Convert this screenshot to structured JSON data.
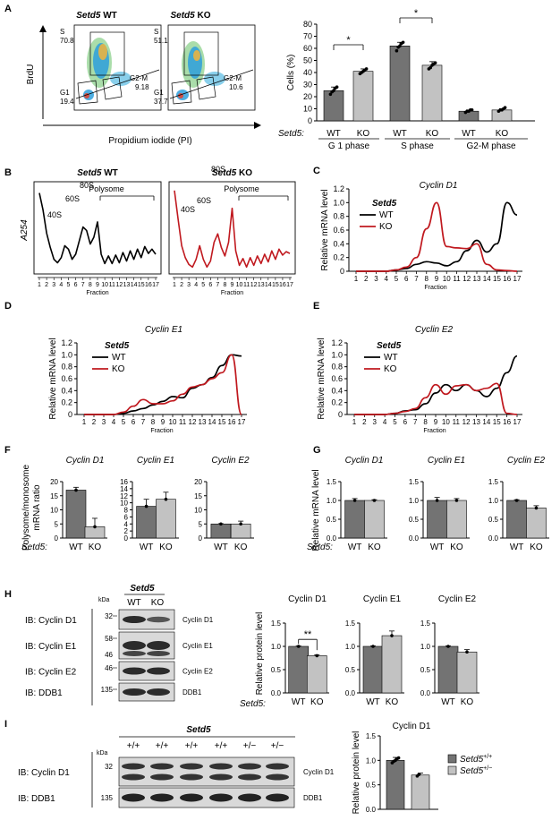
{
  "colors": {
    "wt": "#000000",
    "ko": "#c0191f",
    "dark_bar": "#737373",
    "light_bar": "#c2c2c2",
    "blot_bg": "#d9d9d9"
  },
  "panel_letters": [
    "A",
    "B",
    "C",
    "D",
    "E",
    "F",
    "G",
    "H",
    "I"
  ],
  "a": {
    "flow_titles": [
      {
        "gene": "Setd5",
        "geno": "WT"
      },
      {
        "gene": "Setd5",
        "geno": "KO"
      }
    ],
    "flow_wt": {
      "S_label": "S",
      "S_val": "70.8",
      "G1_label": "G1",
      "G1_val": "19.4",
      "G2M_label": "G2-M",
      "G2M_val": "9.18"
    },
    "flow_ko": {
      "S_label": "S",
      "S_val": "51.1",
      "G1_label": "G1",
      "G1_val": "37.7",
      "G2M_label": "G2-M",
      "G2M_val": "10.6"
    },
    "ylabel": "BrdU",
    "xlabel": "Propidium iodide (PI)",
    "cells_ylabel": "Cells (%)",
    "setd5_label": "Setd5:",
    "geno_labels": [
      "WT",
      "KO",
      "WT",
      "KO",
      "WT",
      "KO"
    ],
    "phase_labels": [
      "G 1 phase",
      "S phase",
      "G2-M phase"
    ],
    "sig": [
      "*",
      "*"
    ]
  },
  "b": {
    "titles": [
      {
        "gene": "Setd5",
        "geno": "WT"
      },
      {
        "gene": "Setd5",
        "geno": "KO"
      }
    ],
    "ylabel": "A254",
    "peaks": [
      "40S",
      "60S",
      "80S",
      "Polysome"
    ],
    "xlabel": "Fraction",
    "fractions": [
      "1",
      "2",
      "3",
      "4",
      "5",
      "6",
      "7",
      "8",
      "9",
      "10",
      "11",
      "12",
      "13",
      "14",
      "15",
      "16",
      "17"
    ]
  },
  "c": {
    "title": "Cyclin D1",
    "ylabel": "Relative mRNA level",
    "legend_title": "Setd5",
    "legend": [
      "WT",
      "KO"
    ],
    "xlabel": "Fraction"
  },
  "d": {
    "title": "Cyclin E1",
    "ylabel": "Relative mRNA level",
    "legend_title": "Setd5",
    "legend": [
      "WT",
      "KO"
    ],
    "xlabel": "Fraction"
  },
  "e": {
    "title": "Cyclin E2",
    "ylabel": "Relative mRNA level",
    "legend_title": "Setd5",
    "legend": [
      "WT",
      "KO"
    ],
    "xlabel": "Fraction"
  },
  "f": {
    "ylabel": "Polysome/monosome mRNA ratio",
    "titles": [
      "Cyclin D1",
      "Cyclin E1",
      "Cyclin E2"
    ],
    "setd5_label": "Setd5:"
  },
  "g": {
    "ylabel": "Relative mRNA level",
    "titles": [
      "Cyclin D1",
      "Cyclin E1",
      "Cyclin E2"
    ],
    "setd5_label": "Setd5:"
  },
  "h": {
    "gene": "Setd5",
    "kda": "kDa",
    "cols": [
      "WT",
      "KO"
    ],
    "rows": [
      {
        "ib": "IB: Cyclin D1",
        "mw1": "32",
        "mw2": "",
        "name": "Cyclin D1"
      },
      {
        "ib": "IB: Cyclin E1",
        "mw1": "58",
        "mw2": "46",
        "name": "Cyclin E1"
      },
      {
        "ib": "IB: Cyclin E2",
        "mw1": "46",
        "mw2": "",
        "name": "Cyclin E2"
      },
      {
        "ib": "IB: DDB1",
        "mw1": "135",
        "mw2": "",
        "name": "DDB1"
      }
    ],
    "ylabel": "Relative protein level",
    "titles": [
      "Cyclin D1",
      "Cyclin E1",
      "Cyclin E2"
    ],
    "setd5_label": "Setd5:",
    "sig": "**"
  },
  "i": {
    "gene": "Setd5",
    "kda": "kDa",
    "lanes": [
      "+/+",
      "+/+",
      "+/+",
      "+/+",
      "+/−",
      "+/−"
    ],
    "rows": [
      {
        "ib": "IB: Cyclin D1",
        "mw": "32",
        "name": "Cyclin D1"
      },
      {
        "ib": "IB: DDB1",
        "mw": "135",
        "name": "DDB1"
      }
    ],
    "ylabel": "Relative protein level",
    "title": "Cyclin D1",
    "legend": [
      {
        "gene": "Setd5",
        "sup": "+/+"
      },
      {
        "gene": "Setd5",
        "sup": "+/−"
      }
    ]
  },
  "chart_data": [
    {
      "panel": "A",
      "type": "bar",
      "ylabel": "Cells (%)",
      "ylim": [
        0,
        80
      ],
      "yticks": [
        0,
        10,
        20,
        30,
        40,
        50,
        60,
        70,
        80
      ],
      "categories": [
        "G 1 phase",
        "S phase",
        "G2-M phase"
      ],
      "series": [
        {
          "name": "WT",
          "values": [
            25,
            62,
            8
          ]
        },
        {
          "name": "KO",
          "values": [
            41,
            46,
            9
          ]
        }
      ],
      "errors": [
        [
          3,
          3,
          1
        ],
        [
          2,
          3,
          1
        ]
      ],
      "points": [
        [
          [
            22,
            24,
            25,
            27,
            28
          ],
          [
            39,
            40,
            41,
            42,
            43
          ]
        ],
        [
          [
            58,
            61,
            62,
            64,
            65
          ],
          [
            43,
            44,
            46,
            47,
            48
          ]
        ],
        [
          [
            7,
            8,
            8,
            9,
            9
          ],
          [
            8,
            9,
            9,
            10,
            11
          ]
        ]
      ]
    },
    {
      "panel": "B",
      "type": "line",
      "series": [
        {
          "name": "WT",
          "x": [
            1,
            1.5,
            2,
            2.5,
            3,
            3.5,
            4,
            4.5,
            5,
            5.5,
            6,
            6.5,
            7,
            7.5,
            8,
            8.5,
            9,
            9.5,
            10,
            10.5,
            11,
            11.5,
            12,
            12.5,
            13,
            13.5,
            14,
            14.5,
            15,
            15.5,
            16,
            16.5,
            17
          ],
          "y": [
            0.92,
            0.72,
            0.45,
            0.28,
            0.14,
            0.1,
            0.16,
            0.3,
            0.26,
            0.14,
            0.2,
            0.36,
            0.52,
            0.48,
            0.32,
            0.4,
            0.58,
            0.2,
            0.09,
            0.18,
            0.09,
            0.19,
            0.1,
            0.22,
            0.12,
            0.24,
            0.14,
            0.26,
            0.16,
            0.29,
            0.21,
            0.26,
            0.2
          ]
        },
        {
          "name": "KO",
          "x": [
            1,
            1.5,
            2,
            2.5,
            3,
            3.5,
            4,
            4.5,
            5,
            5.5,
            6,
            6.5,
            7,
            7.5,
            8,
            8.5,
            9,
            9.5,
            10,
            10.5,
            11,
            11.5,
            12,
            12.5,
            13,
            13.5,
            14,
            14.5,
            15,
            15.5,
            16,
            16.5,
            17
          ],
          "y": [
            0.95,
            0.62,
            0.3,
            0.16,
            0.08,
            0.05,
            0.14,
            0.3,
            0.14,
            0.05,
            0.12,
            0.34,
            0.44,
            0.28,
            0.18,
            0.34,
            0.74,
            0.24,
            0.07,
            0.15,
            0.05,
            0.16,
            0.07,
            0.18,
            0.09,
            0.2,
            0.11,
            0.24,
            0.14,
            0.26,
            0.19,
            0.23,
            0.21
          ]
        }
      ]
    },
    {
      "panel": "C",
      "type": "line",
      "title": "Cyclin D1",
      "ylabel": "Relative mRNA level",
      "ylim": [
        0,
        1.2
      ],
      "yticks": [
        0,
        0.2,
        0.4,
        0.6,
        0.8,
        1.0,
        1.2
      ],
      "xlabel": "Fraction",
      "x": [
        1,
        2,
        3,
        4,
        5,
        6,
        7,
        8,
        9,
        10,
        11,
        12,
        13,
        14,
        15,
        16,
        17
      ],
      "series": [
        {
          "name": "WT",
          "values": [
            0,
            0,
            0,
            0,
            0.02,
            0.04,
            0.1,
            0.14,
            0.12,
            0.08,
            0.14,
            0.3,
            0.45,
            0.28,
            0.4,
            1.0,
            0.82
          ]
        },
        {
          "name": "KO",
          "values": [
            0,
            0,
            0,
            0,
            0.02,
            0.06,
            0.2,
            0.62,
            1.0,
            0.36,
            0.34,
            0.33,
            0.4,
            0.1,
            0.02,
            0.01,
            0
          ]
        }
      ]
    },
    {
      "panel": "D",
      "type": "line",
      "title": "Cyclin E1",
      "ylabel": "Relative mRNA level",
      "ylim": [
        0,
        1.2
      ],
      "yticks": [
        0,
        0.2,
        0.4,
        0.6,
        0.8,
        1.0,
        1.2
      ],
      "xlabel": "Fraction",
      "x": [
        1,
        2,
        3,
        4,
        5,
        6,
        7,
        8,
        9,
        10,
        11,
        12,
        13,
        14,
        15,
        16,
        17
      ],
      "series": [
        {
          "name": "WT",
          "values": [
            0,
            0,
            0,
            0,
            0.02,
            0.06,
            0.1,
            0.16,
            0.22,
            0.3,
            0.28,
            0.44,
            0.5,
            0.62,
            0.82,
            1.0,
            0.98
          ]
        },
        {
          "name": "KO",
          "values": [
            0,
            0,
            0,
            0,
            0.04,
            0.14,
            0.25,
            0.18,
            0.18,
            0.23,
            0.34,
            0.46,
            0.5,
            0.6,
            0.7,
            1.0,
            0
          ]
        }
      ]
    },
    {
      "panel": "E",
      "type": "line",
      "title": "Cyclin E2",
      "ylabel": "Relative mRNA level",
      "ylim": [
        0,
        1.2
      ],
      "yticks": [
        0,
        0.2,
        0.4,
        0.6,
        0.8,
        1.0,
        1.2
      ],
      "xlabel": "Fraction",
      "x": [
        1,
        2,
        3,
        4,
        5,
        6,
        7,
        8,
        9,
        10,
        11,
        12,
        13,
        14,
        15,
        16,
        17
      ],
      "series": [
        {
          "name": "WT",
          "values": [
            0,
            0,
            0,
            0,
            0.02,
            0.06,
            0.08,
            0.18,
            0.36,
            0.5,
            0.4,
            0.5,
            0.4,
            0.3,
            0.44,
            0.7,
            0.98
          ]
        },
        {
          "name": "KO",
          "values": [
            0,
            0,
            0,
            0,
            0.02,
            0.05,
            0.1,
            0.28,
            0.5,
            0.34,
            0.48,
            0.5,
            0.4,
            0.44,
            0.52,
            0.02,
            0
          ]
        }
      ]
    },
    {
      "panel": "F",
      "type": "bar",
      "ylabel": "Polysome/monosome mRNA ratio",
      "subplots": [
        {
          "title": "Cyclin D1",
          "categories": [
            "WT",
            "KO"
          ],
          "values": [
            17,
            4
          ],
          "errors": [
            1,
            3
          ],
          "ylim": [
            0,
            20
          ],
          "yticks": [
            0,
            5,
            10,
            15,
            20
          ]
        },
        {
          "title": "Cyclin E1",
          "categories": [
            "WT",
            "KO"
          ],
          "values": [
            9,
            11
          ],
          "errors": [
            2,
            2
          ],
          "ylim": [
            0,
            16
          ],
          "yticks": [
            0,
            2,
            4,
            6,
            8,
            10,
            12,
            14,
            16
          ]
        },
        {
          "title": "Cyclin E2",
          "categories": [
            "WT",
            "KO"
          ],
          "values": [
            5,
            5
          ],
          "errors": [
            0.1,
            1
          ],
          "ylim": [
            0,
            20
          ],
          "yticks": [
            0,
            5,
            10,
            15,
            20
          ]
        }
      ]
    },
    {
      "panel": "G",
      "type": "bar",
      "ylabel": "Relative mRNA level",
      "subplots": [
        {
          "title": "Cyclin D1",
          "categories": [
            "WT",
            "KO"
          ],
          "values": [
            1.0,
            1.0
          ],
          "errors": [
            0.05,
            0.02
          ],
          "ylim": [
            0,
            1.5
          ],
          "yticks": [
            0,
            0.5,
            1.0,
            1.5
          ]
        },
        {
          "title": "Cyclin E1",
          "categories": [
            "WT",
            "KO"
          ],
          "values": [
            1.0,
            1.0
          ],
          "errors": [
            0.08,
            0.05
          ],
          "ylim": [
            0,
            1.5
          ],
          "yticks": [
            0,
            0.5,
            1.0,
            1.5
          ]
        },
        {
          "title": "Cyclin E2",
          "categories": [
            "WT",
            "KO"
          ],
          "values": [
            1.0,
            0.8
          ],
          "errors": [
            0.02,
            0.06
          ],
          "ylim": [
            0,
            1.5
          ],
          "yticks": [
            0,
            0.5,
            1.0,
            1.5
          ]
        }
      ]
    },
    {
      "panel": "H",
      "type": "bar",
      "ylabel": "Relative protein level",
      "subplots": [
        {
          "title": "Cyclin D1",
          "categories": [
            "WT",
            "KO"
          ],
          "values": [
            1.0,
            0.8
          ],
          "errors": [
            0.01,
            0.02
          ],
          "ylim": [
            0,
            1.5
          ],
          "yticks": [
            0,
            0.5,
            1.0,
            1.5
          ]
        },
        {
          "title": "Cyclin E1",
          "categories": [
            "WT",
            "KO"
          ],
          "values": [
            1.0,
            1.23
          ],
          "errors": [
            0.01,
            0.1
          ],
          "ylim": [
            0,
            1.5
          ],
          "yticks": [
            0,
            0.5,
            1.0,
            1.5
          ]
        },
        {
          "title": "Cyclin E2",
          "categories": [
            "WT",
            "KO"
          ],
          "values": [
            1.0,
            0.88
          ],
          "errors": [
            0.01,
            0.05
          ],
          "ylim": [
            0,
            1.5
          ],
          "yticks": [
            0,
            0.5,
            1.0,
            1.5
          ]
        }
      ]
    },
    {
      "panel": "I",
      "type": "bar",
      "title": "Cyclin D1",
      "ylabel": "Relative protein level",
      "ylim": [
        0,
        1.5
      ],
      "yticks": [
        0,
        0.5,
        1.0,
        1.5
      ],
      "categories": [
        "Setd5 +/+",
        "Setd5 +/−"
      ],
      "values": [
        1.0,
        0.7
      ],
      "errors": [
        0.06,
        0.04
      ]
    }
  ]
}
